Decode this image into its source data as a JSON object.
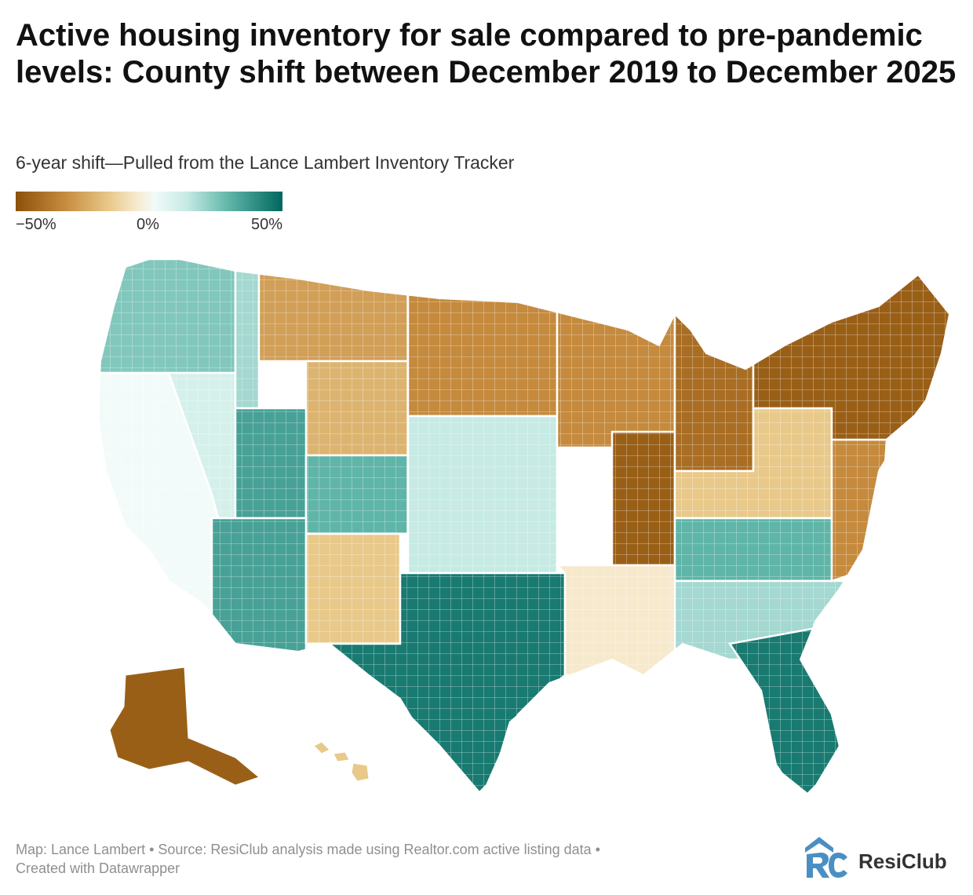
{
  "title": "Active housing inventory for sale compared to pre-pandemic levels: County shift between December 2019 to December 2025",
  "subtitle": "6-year shift—Pulled from the Lance Lambert Inventory Tracker",
  "legend": {
    "min_label": "−50%",
    "mid_label": "0%",
    "max_label": "50%",
    "min_color": "#8c510a",
    "mid_color": "#f5f5f5",
    "max_color": "#01665e"
  },
  "footer": {
    "line1": "Map: Lance Lambert • Source: ResiClub analysis made using Realtor.com active listing data •",
    "line2": "Created with Datawrapper"
  },
  "brand": {
    "name": "ResiClub",
    "logo_icon": "resiclub-logo-icon"
  },
  "regions": [
    {
      "name": "pacific-northwest",
      "shift_pct": 25
    },
    {
      "name": "california",
      "shift_pct": 0
    },
    {
      "name": "nevada",
      "shift_pct": 10
    },
    {
      "name": "idaho",
      "shift_pct": 20
    },
    {
      "name": "montana",
      "shift_pct": -25
    },
    {
      "name": "wyoming",
      "shift_pct": -20
    },
    {
      "name": "utah",
      "shift_pct": 35
    },
    {
      "name": "colorado",
      "shift_pct": 30
    },
    {
      "name": "arizona",
      "shift_pct": 35
    },
    {
      "name": "new-mexico",
      "shift_pct": -15
    },
    {
      "name": "northern-plains",
      "shift_pct": -30
    },
    {
      "name": "central-plains",
      "shift_pct": 15
    },
    {
      "name": "texas",
      "shift_pct": 45
    },
    {
      "name": "midwest",
      "shift_pct": -30
    },
    {
      "name": "illinois",
      "shift_pct": -45
    },
    {
      "name": "great-lakes",
      "shift_pct": -40
    },
    {
      "name": "ohio-valley",
      "shift_pct": -15
    },
    {
      "name": "tennessee-kentucky",
      "shift_pct": 30
    },
    {
      "name": "gulf-south",
      "shift_pct": -5
    },
    {
      "name": "southeast",
      "shift_pct": 20
    },
    {
      "name": "florida",
      "shift_pct": 45
    },
    {
      "name": "mid-atlantic",
      "shift_pct": -30
    },
    {
      "name": "northeast",
      "shift_pct": -45
    },
    {
      "name": "alaska",
      "shift_pct": -45
    },
    {
      "name": "hawaii",
      "shift_pct": -15
    }
  ]
}
